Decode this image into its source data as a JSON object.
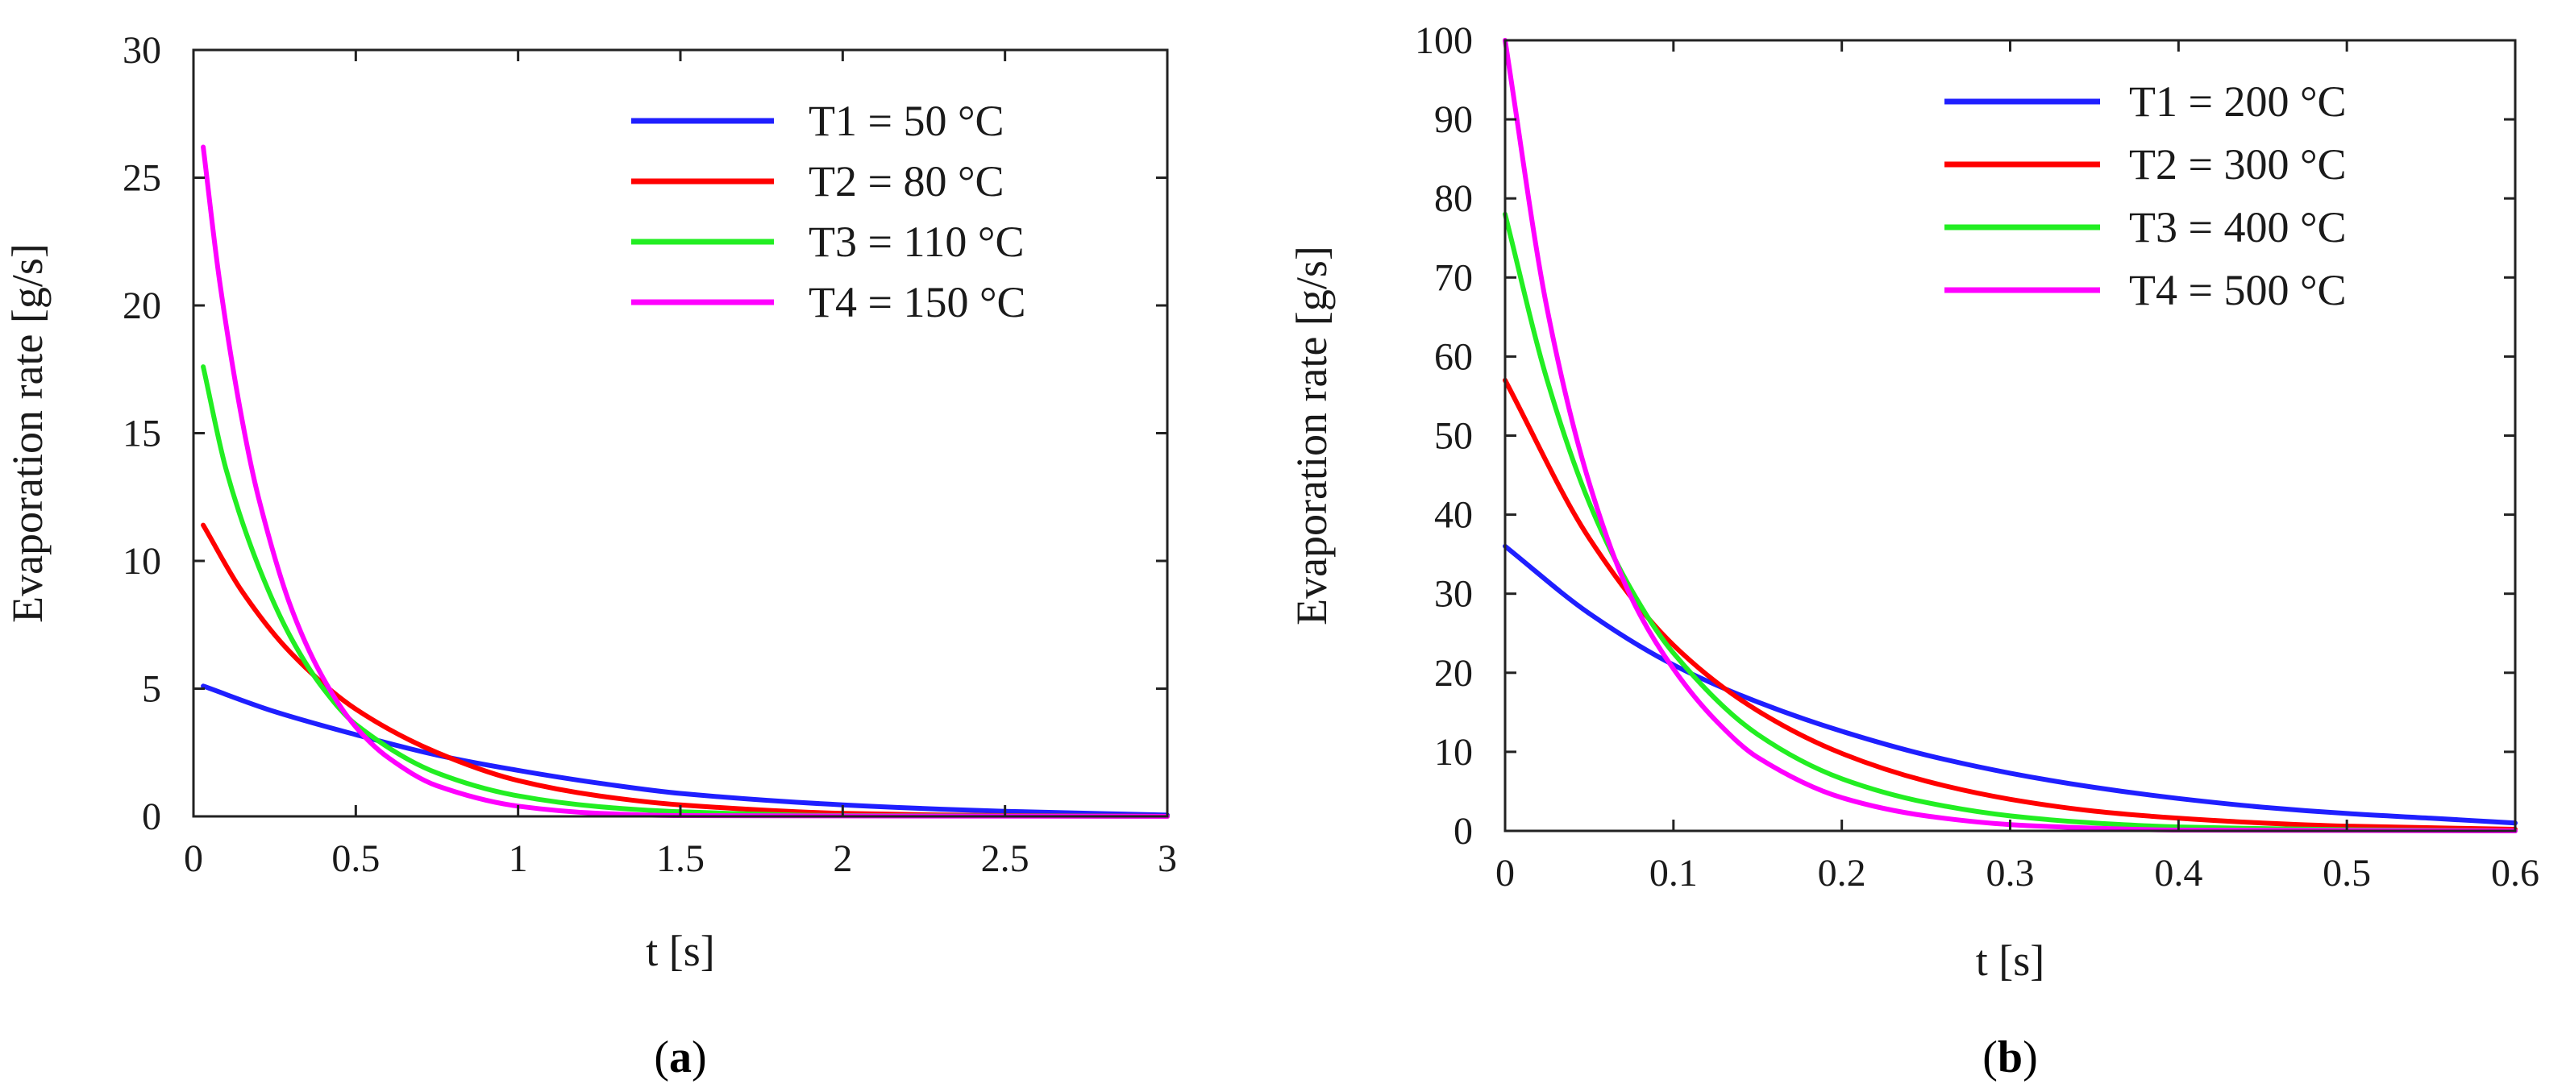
{
  "chart_data": [
    {
      "type": "line",
      "panel": "a",
      "caption": {
        "open": "(",
        "letter": "a",
        "close": ")"
      },
      "xlabel": "t [s]",
      "ylabel": "Evaporation rate [g/s]",
      "xlim": [
        0,
        3
      ],
      "ylim": [
        0,
        30
      ],
      "xticks": [
        0,
        0.5,
        1,
        1.5,
        2,
        2.5,
        3
      ],
      "xtick_labels": [
        "0",
        "0.5",
        "1",
        "1.5",
        "2",
        "2.5",
        "3"
      ],
      "yticks": [
        0,
        5,
        10,
        15,
        20,
        25,
        30
      ],
      "ytick_labels": [
        "0",
        "5",
        "10",
        "15",
        "20",
        "25",
        "30"
      ],
      "legend_position": "top-right",
      "series": [
        {
          "name": "T1 = 50 °C",
          "color": "#1f1fff",
          "x": [
            0.03,
            0.25,
            0.5,
            0.75,
            1.0,
            1.25,
            1.5,
            2.0,
            2.5,
            3.0
          ],
          "y": [
            5.1,
            4.1,
            3.2,
            2.4,
            1.8,
            1.3,
            0.9,
            0.45,
            0.2,
            0.05
          ]
        },
        {
          "name": "T2 = 80 °C",
          "color": "#ff0000",
          "x": [
            0.03,
            0.15,
            0.3,
            0.5,
            0.75,
            1.0,
            1.25,
            1.5,
            2.0,
            2.5,
            3.0
          ],
          "y": [
            11.4,
            8.8,
            6.4,
            4.2,
            2.5,
            1.4,
            0.8,
            0.45,
            0.12,
            0.03,
            0.0
          ]
        },
        {
          "name": "T3 = 110 °C",
          "color": "#22ee22",
          "x": [
            0.03,
            0.1,
            0.2,
            0.3,
            0.4,
            0.5,
            0.75,
            1.0,
            1.25,
            1.5,
            2.0,
            3.0
          ],
          "y": [
            17.6,
            13.6,
            9.8,
            7.0,
            5.0,
            3.6,
            1.7,
            0.8,
            0.38,
            0.18,
            0.03,
            0.0
          ]
        },
        {
          "name": "T4 = 150 °C",
          "color": "#ff00ff",
          "x": [
            0.03,
            0.08,
            0.15,
            0.2,
            0.3,
            0.4,
            0.5,
            0.6,
            0.75,
            1.0,
            1.25,
            1.5,
            3.0
          ],
          "y": [
            26.2,
            21.0,
            15.5,
            12.5,
            8.2,
            5.4,
            3.5,
            2.3,
            1.2,
            0.4,
            0.12,
            0.03,
            0.0
          ]
        }
      ]
    },
    {
      "type": "line",
      "panel": "b",
      "caption": {
        "open": "(",
        "letter": "b",
        "close": ")"
      },
      "xlabel": "t [s]",
      "ylabel": "Evaporation rate [g/s]",
      "xlim": [
        0,
        0.6
      ],
      "ylim": [
        0,
        100
      ],
      "xticks": [
        0,
        0.1,
        0.2,
        0.3,
        0.4,
        0.5,
        0.6
      ],
      "xtick_labels": [
        "0",
        "0.1",
        "0.2",
        "0.3",
        "0.4",
        "0.5",
        "0.6"
      ],
      "yticks": [
        0,
        10,
        20,
        30,
        40,
        50,
        60,
        70,
        80,
        90,
        100
      ],
      "ytick_labels": [
        "0",
        "10",
        "20",
        "30",
        "40",
        "50",
        "60",
        "70",
        "80",
        "90",
        "100"
      ],
      "legend_position": "top-right",
      "series": [
        {
          "name": "T1 = 200 °C",
          "color": "#1f1fff",
          "x": [
            0,
            0.05,
            0.1,
            0.15,
            0.2,
            0.25,
            0.3,
            0.35,
            0.4,
            0.45,
            0.5,
            0.55,
            0.6
          ],
          "y": [
            36,
            27.5,
            21,
            16.3,
            12.6,
            9.6,
            7.3,
            5.5,
            4.1,
            3.0,
            2.2,
            1.6,
            1.0
          ]
        },
        {
          "name": "T2 = 300 °C",
          "color": "#ff0000",
          "x": [
            0,
            0.05,
            0.1,
            0.15,
            0.2,
            0.25,
            0.3,
            0.35,
            0.4,
            0.45,
            0.5,
            0.6
          ],
          "y": [
            57,
            37,
            23.5,
            15.2,
            9.8,
            6.3,
            4.0,
            2.5,
            1.6,
            1.0,
            0.6,
            0.2
          ]
        },
        {
          "name": "T3 = 400 °C",
          "color": "#22ee22",
          "x": [
            0,
            0.025,
            0.05,
            0.075,
            0.1,
            0.15,
            0.2,
            0.25,
            0.3,
            0.35,
            0.4,
            0.5,
            0.6
          ],
          "y": [
            78,
            57,
            41.5,
            30.5,
            22.5,
            12.2,
            6.6,
            3.6,
            1.9,
            1.0,
            0.5,
            0.15,
            0.0
          ]
        },
        {
          "name": "T4 = 500 °C",
          "color": "#ff00ff",
          "x": [
            0,
            0.025,
            0.05,
            0.075,
            0.1,
            0.125,
            0.15,
            0.2,
            0.25,
            0.3,
            0.35,
            0.4,
            0.6
          ],
          "y": [
            100,
            66,
            44,
            29.5,
            20.5,
            14,
            9.3,
            4.2,
            1.9,
            0.8,
            0.35,
            0.1,
            0.0
          ]
        }
      ]
    }
  ]
}
